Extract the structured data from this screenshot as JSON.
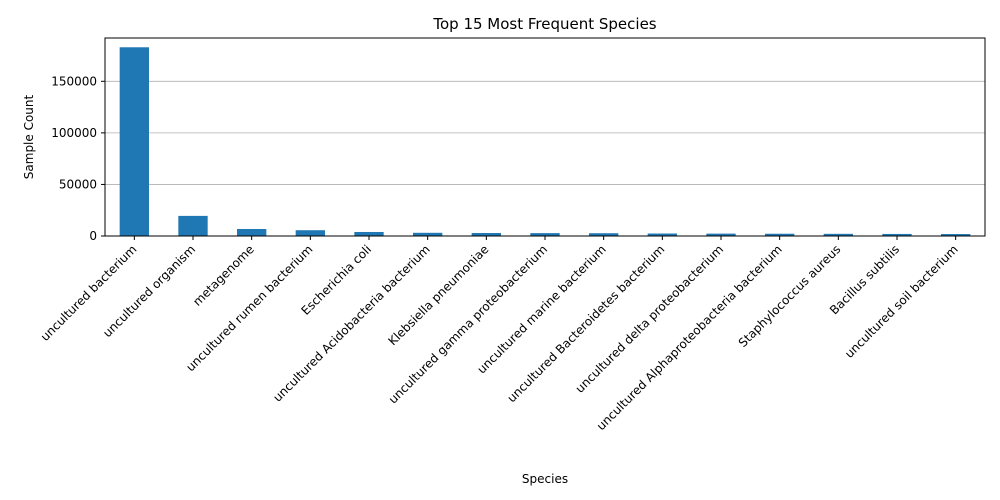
{
  "chart_data": {
    "type": "bar",
    "title": "Top 15 Most Frequent Species",
    "xlabel": "Species",
    "ylabel": "Sample Count",
    "categories": [
      "uncultured bacterium",
      "uncultured organism",
      "metagenome",
      "uncultured rumen bacterium",
      "Escherichia coli",
      "uncultured Acidobacteria bacterium",
      "Klebsiella pneumoniae",
      "uncultured gamma proteobacterium",
      "uncultured marine bacterium",
      "uncultured Bacteroidetes bacterium",
      "uncultured delta proteobacterium",
      "uncultured Alphaproteobacteria bacterium",
      "Staphylococcus aureus",
      "Bacillus subtilis",
      "uncultured soil bacterium"
    ],
    "values": [
      183000,
      19500,
      6800,
      5600,
      3900,
      3100,
      2900,
      2800,
      2700,
      2400,
      2300,
      2200,
      2100,
      2000,
      1900
    ],
    "ylim": [
      0,
      192000
    ],
    "yticks": [
      0,
      50000,
      100000,
      150000
    ],
    "ytick_labels": [
      "0",
      "50000",
      "100000",
      "150000"
    ],
    "grid": "y",
    "bar_color": "#1f77b4",
    "grid_color": "#b0b0b0"
  }
}
